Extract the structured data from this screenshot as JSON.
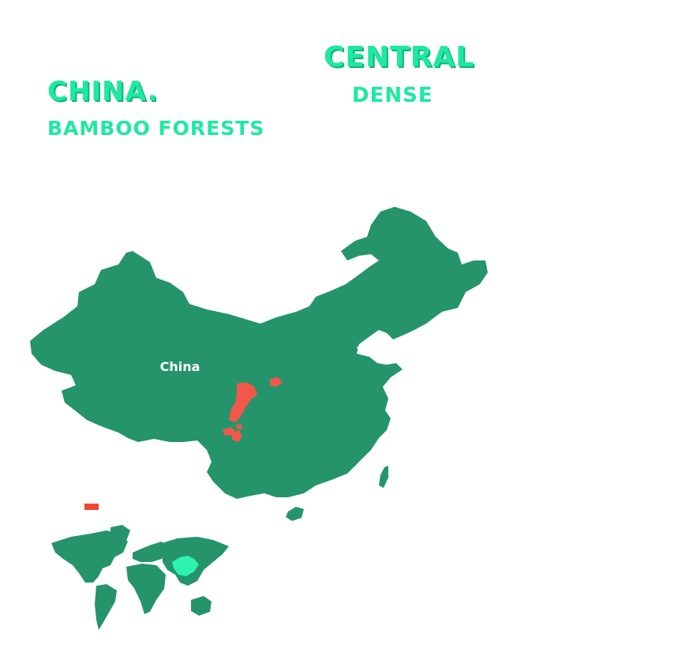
{
  "headline": {
    "country": "CHINA.",
    "topic": "BAMBOO FORESTS",
    "region": "CENTRAL",
    "density": "DENSE"
  },
  "map": {
    "country_label": "China",
    "land_color": "#25946b",
    "highlight_color": "#f2574a",
    "inset_highlight_color": "#2ef2b0"
  },
  "legend": {
    "swatch_color": "#f2442f"
  }
}
